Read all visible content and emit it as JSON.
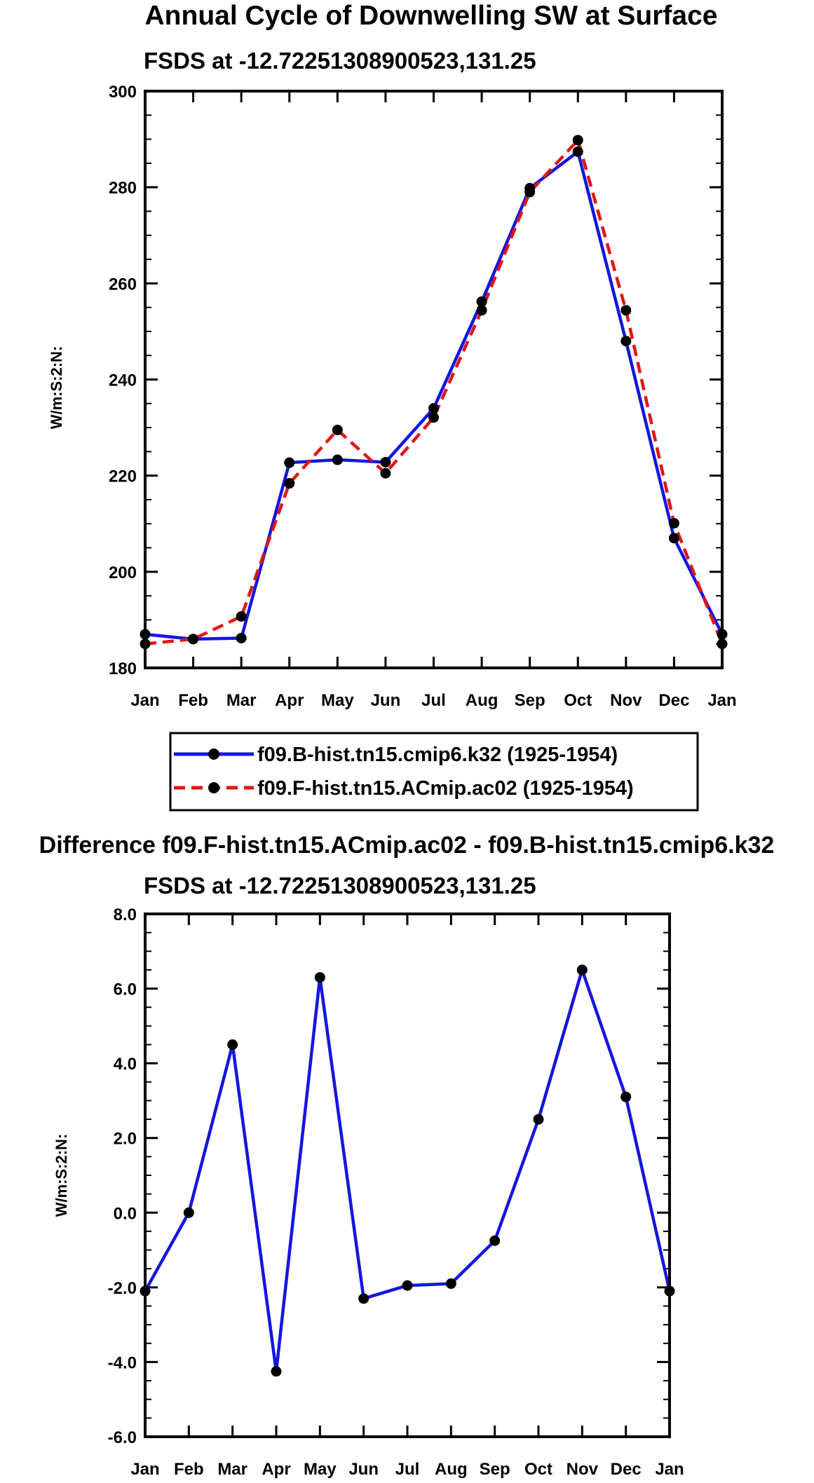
{
  "chart_data": [
    {
      "type": "line",
      "title": "Annual Cycle of Downwelling SW at Surface",
      "subtitle": "FSDS at -12.72251308900523,131.25",
      "ylabel": "W/m:S:2:N:",
      "xlabel": "",
      "categories": [
        "Jan",
        "Feb",
        "Mar",
        "Apr",
        "May",
        "Jun",
        "Jul",
        "Aug",
        "Sep",
        "Oct",
        "Nov",
        "Dec",
        "Jan"
      ],
      "ylim": [
        180,
        300
      ],
      "yticks": [
        180,
        200,
        220,
        240,
        260,
        280,
        300
      ],
      "ytick_labels": [
        "180",
        "200",
        "220",
        "240",
        "260",
        "280",
        "300"
      ],
      "legend_position": "below",
      "series": [
        {
          "name": "f09.B-hist.tn15.cmip6.k32 (1925-1954)",
          "color": "#1515e0",
          "dash": "solid",
          "values": [
            187.0,
            186.0,
            186.2,
            222.7,
            223.3,
            222.8,
            234.0,
            256.2,
            279.8,
            287.4,
            248.0,
            207.0,
            187.0
          ]
        },
        {
          "name": "f09.F-hist.tn15.ACmip.ac02 (1925-1954)",
          "color": "#e01515",
          "dash": "dashed",
          "values": [
            185.0,
            186.0,
            190.7,
            218.4,
            229.5,
            220.5,
            232.1,
            254.4,
            279.0,
            289.8,
            254.4,
            210.1,
            185.0
          ]
        }
      ]
    },
    {
      "type": "line",
      "title": "Difference f09.F-hist.tn15.ACmip.ac02 - f09.B-hist.tn15.cmip6.k32",
      "subtitle": "FSDS at -12.72251308900523,131.25",
      "ylabel": "W/m:S:2:N:",
      "xlabel": "",
      "categories": [
        "Jan",
        "Feb",
        "Mar",
        "Apr",
        "May",
        "Jun",
        "Jul",
        "Aug",
        "Sep",
        "Oct",
        "Nov",
        "Dec",
        "Jan"
      ],
      "ylim": [
        -6,
        8
      ],
      "yticks": [
        -6,
        -4,
        -2,
        0,
        2,
        4,
        6,
        8
      ],
      "ytick_labels": [
        "-6.0",
        "-4.0",
        "-2.0",
        "0.0",
        "2.0",
        "4.0",
        "6.0",
        "8.0"
      ],
      "series": [
        {
          "name": "difference",
          "color": "#1515e0",
          "dash": "solid",
          "values": [
            -2.1,
            0.0,
            4.5,
            -4.25,
            6.3,
            -2.3,
            -1.95,
            -1.9,
            -0.75,
            2.5,
            6.5,
            3.1,
            -2.1
          ]
        }
      ]
    }
  ]
}
